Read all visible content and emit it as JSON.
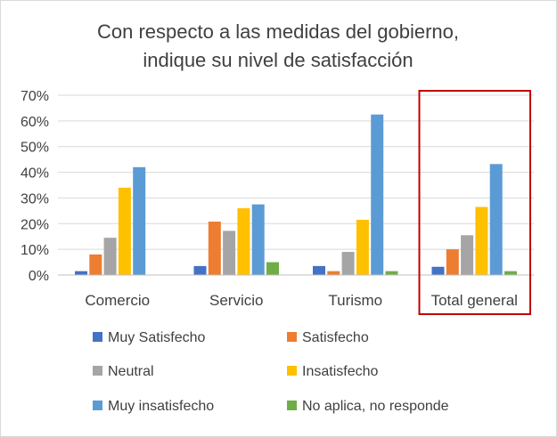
{
  "chart_data": {
    "type": "bar",
    "title_lines": [
      "Con respecto a las medidas del gobierno,",
      "indique su nivel de satisfacción"
    ],
    "categories": [
      "Comercio",
      "Servicio",
      "Turismo",
      "Total general"
    ],
    "series": [
      {
        "name": "Muy Satisfecho",
        "color": "#4472C4",
        "values": [
          1.5,
          3.5,
          3.5,
          3.2
        ]
      },
      {
        "name": "Satisfecho",
        "color": "#ED7D31",
        "values": [
          8,
          20.8,
          1.5,
          10
        ]
      },
      {
        "name": "Neutral",
        "color": "#A5A5A5",
        "values": [
          14.5,
          17.2,
          9,
          15.5
        ]
      },
      {
        "name": "Insatisfecho",
        "color": "#FFC000",
        "values": [
          34,
          26,
          21.5,
          26.5
        ]
      },
      {
        "name": "Muy insatisfecho",
        "color": "#5B9BD5",
        "values": [
          42,
          27.5,
          62.5,
          43.2
        ]
      },
      {
        "name": "No aplica, no responde",
        "color": "#70AD47",
        "values": [
          0,
          5,
          1.5,
          1.5
        ]
      }
    ],
    "y_ticks": [
      "0%",
      "10%",
      "20%",
      "30%",
      "40%",
      "50%",
      "60%",
      "70%"
    ],
    "ylim": [
      0,
      70
    ],
    "ylabel": "",
    "xlabel": "",
    "grid": true,
    "legend_position": "bottom",
    "highlight": {
      "category": "Total general",
      "color": "#C00000"
    }
  }
}
